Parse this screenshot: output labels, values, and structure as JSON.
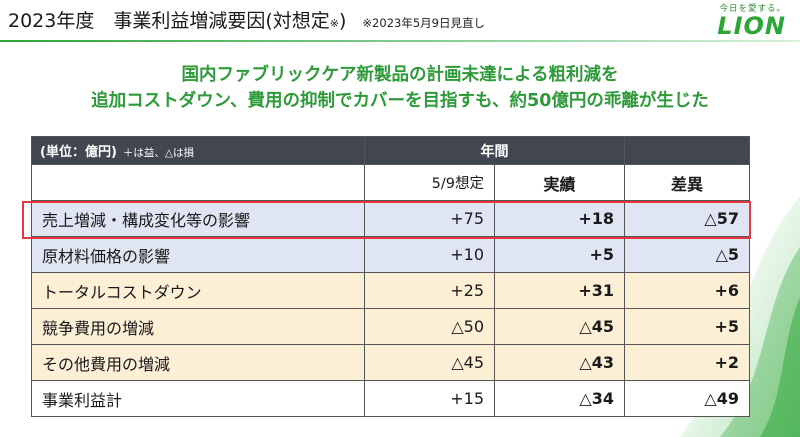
{
  "header": {
    "title_main": "2023年度　事業利益増減要因(対想定",
    "title_sup": "※",
    "title_close": ")",
    "note": "※2023年5月9日見直し"
  },
  "brand": {
    "tagline": "今日を愛する。",
    "logo": "LION"
  },
  "headline": {
    "line1": "国内ファブリックケア新製品の計画未達による粗利減を",
    "line2": "追加コストダウン、費用の抑制でカバーを目指すも、約50億円の乖離が生じた"
  },
  "table": {
    "unit": "(単位：億円)",
    "unit_note": "＋は益、△は損",
    "year_header": "年間",
    "col_plan": "5/9想定",
    "col_actual": "実績",
    "col_diff": "差異",
    "rows": [
      {
        "label": "売上増減・構成変化等の影響",
        "plan": "+75",
        "actual": "+18",
        "diff": "△57"
      },
      {
        "label": "原材料価格の影響",
        "plan": "+10",
        "actual": "+5",
        "diff": "△5"
      },
      {
        "label": "トータルコストダウン",
        "plan": "+25",
        "actual": "+31",
        "diff": "+6"
      },
      {
        "label": "競争費用の増減",
        "plan": "△50",
        "actual": "△45",
        "diff": "+5"
      },
      {
        "label": "その他費用の増減",
        "plan": "△45",
        "actual": "△43",
        "diff": "+2"
      },
      {
        "label": "事業利益計",
        "plan": "+15",
        "actual": "△34",
        "diff": "△49"
      }
    ]
  },
  "colors": {
    "accent_green": "#2e9a3a",
    "header_dark": "#414651",
    "row_blue": "#dfe5f2",
    "row_yellow": "#fbefd6",
    "highlight_red": "#e8383d"
  }
}
